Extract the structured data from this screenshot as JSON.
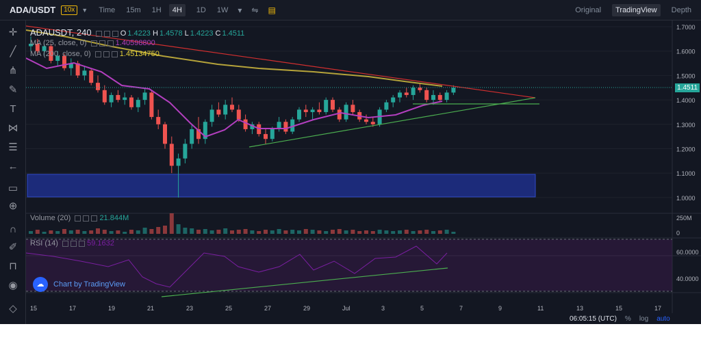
{
  "header": {
    "pair": "ADA/USDT",
    "leverage": "10x",
    "intervals": [
      "Time",
      "15m",
      "1H",
      "4H",
      "1D",
      "1W"
    ],
    "active_interval": "4H",
    "views": [
      "Original",
      "TradingView",
      "Depth"
    ],
    "active_view": "TradingView"
  },
  "legend": {
    "symbol": "ADAUSDT, 240",
    "o_label": "O",
    "o": "1.4223",
    "h_label": "H",
    "h": "1.4578",
    "l_label": "L",
    "l": "1.4223",
    "c_label": "C",
    "c": "1.4511",
    "ma25_label": "MA (25, close, 0)",
    "ma25_value": "1.40598800",
    "ma200_label": "MA (200, close, 0)",
    "ma200_value": "1.45134750",
    "volume_label": "Volume (20)",
    "volume_value": "21.844M",
    "rsi_label": "RSI (14)",
    "rsi_value": "59.1632"
  },
  "price_axis": [
    "1.7000",
    "1.6000",
    "1.5000",
    "1.4000",
    "1.3000",
    "1.2000",
    "1.1000",
    "1.0000"
  ],
  "last_price": "1.4511",
  "volume_axis": [
    "250M",
    "0"
  ],
  "rsi_axis": [
    "60.0000",
    "40.0000"
  ],
  "time_axis": [
    "15",
    "17",
    "19",
    "21",
    "23",
    "25",
    "27",
    "29",
    "Jul",
    "3",
    "5",
    "7",
    "9",
    "11",
    "13",
    "15",
    "17"
  ],
  "status": {
    "time": "06:05:15 (UTC)",
    "percent": "%",
    "log": "log",
    "auto": "auto"
  },
  "brand": "Chart by TradingView",
  "colors": {
    "bg": "#131722",
    "up": "#26a69a",
    "down": "#ef5350",
    "ma25": "#b33fbf",
    "ma200": "#b5a33a",
    "trend_down": "#d32f2f",
    "trend_up": "#4caf50",
    "zone": "#1e2f8a"
  },
  "chart_data": {
    "type": "candlestick",
    "x_range": [
      "Jun 15",
      "Jul 18"
    ],
    "y_range": [
      0.95,
      1.72
    ],
    "candles": [
      [
        1.62,
        1.66,
        1.6,
        1.63
      ],
      [
        1.63,
        1.65,
        1.59,
        1.6
      ],
      [
        1.6,
        1.63,
        1.58,
        1.62
      ],
      [
        1.62,
        1.63,
        1.55,
        1.56
      ],
      [
        1.56,
        1.6,
        1.54,
        1.58
      ],
      [
        1.58,
        1.59,
        1.52,
        1.53
      ],
      [
        1.53,
        1.57,
        1.5,
        1.55
      ],
      [
        1.55,
        1.56,
        1.49,
        1.5
      ],
      [
        1.5,
        1.54,
        1.48,
        1.52
      ],
      [
        1.52,
        1.53,
        1.46,
        1.47
      ],
      [
        1.47,
        1.5,
        1.43,
        1.44
      ],
      [
        1.44,
        1.46,
        1.38,
        1.39
      ],
      [
        1.39,
        1.43,
        1.37,
        1.42
      ],
      [
        1.42,
        1.44,
        1.39,
        1.4
      ],
      [
        1.4,
        1.43,
        1.38,
        1.41
      ],
      [
        1.41,
        1.42,
        1.36,
        1.37
      ],
      [
        1.37,
        1.41,
        1.35,
        1.4
      ],
      [
        1.4,
        1.45,
        1.38,
        1.43
      ],
      [
        1.43,
        1.44,
        1.32,
        1.33
      ],
      [
        1.33,
        1.36,
        1.28,
        1.3
      ],
      [
        1.3,
        1.31,
        1.2,
        1.22
      ],
      [
        1.22,
        1.25,
        1.1,
        1.13
      ],
      [
        1.13,
        1.18,
        1.0,
        1.16
      ],
      [
        1.16,
        1.24,
        1.14,
        1.22
      ],
      [
        1.22,
        1.3,
        1.2,
        1.28
      ],
      [
        1.28,
        1.33,
        1.22,
        1.24
      ],
      [
        1.24,
        1.32,
        1.22,
        1.31
      ],
      [
        1.31,
        1.38,
        1.29,
        1.36
      ],
      [
        1.36,
        1.39,
        1.33,
        1.34
      ],
      [
        1.34,
        1.4,
        1.32,
        1.38
      ],
      [
        1.38,
        1.41,
        1.35,
        1.36
      ],
      [
        1.36,
        1.38,
        1.31,
        1.32
      ],
      [
        1.32,
        1.34,
        1.27,
        1.28
      ],
      [
        1.28,
        1.31,
        1.26,
        1.3
      ],
      [
        1.3,
        1.31,
        1.25,
        1.26
      ],
      [
        1.26,
        1.28,
        1.22,
        1.24
      ],
      [
        1.24,
        1.29,
        1.23,
        1.28
      ],
      [
        1.28,
        1.33,
        1.27,
        1.31
      ],
      [
        1.31,
        1.32,
        1.26,
        1.27
      ],
      [
        1.27,
        1.33,
        1.26,
        1.32
      ],
      [
        1.32,
        1.37,
        1.31,
        1.36
      ],
      [
        1.36,
        1.38,
        1.33,
        1.35
      ],
      [
        1.35,
        1.37,
        1.32,
        1.36
      ],
      [
        1.36,
        1.39,
        1.34,
        1.35
      ],
      [
        1.35,
        1.41,
        1.34,
        1.4
      ],
      [
        1.4,
        1.41,
        1.35,
        1.36
      ],
      [
        1.36,
        1.37,
        1.31,
        1.32
      ],
      [
        1.32,
        1.39,
        1.31,
        1.38
      ],
      [
        1.38,
        1.4,
        1.34,
        1.35
      ],
      [
        1.35,
        1.36,
        1.31,
        1.32
      ],
      [
        1.32,
        1.34,
        1.3,
        1.31
      ],
      [
        1.31,
        1.33,
        1.29,
        1.3
      ],
      [
        1.3,
        1.37,
        1.29,
        1.36
      ],
      [
        1.36,
        1.4,
        1.35,
        1.39
      ],
      [
        1.39,
        1.42,
        1.37,
        1.41
      ],
      [
        1.41,
        1.44,
        1.39,
        1.43
      ],
      [
        1.43,
        1.45,
        1.41,
        1.42
      ],
      [
        1.42,
        1.46,
        1.4,
        1.45
      ],
      [
        1.45,
        1.47,
        1.43,
        1.44
      ],
      [
        1.44,
        1.45,
        1.39,
        1.4
      ],
      [
        1.4,
        1.44,
        1.38,
        1.42
      ],
      [
        1.42,
        1.43,
        1.39,
        1.4
      ],
      [
        1.4,
        1.44,
        1.39,
        1.43
      ],
      [
        1.43,
        1.46,
        1.42,
        1.45
      ]
    ]
  }
}
